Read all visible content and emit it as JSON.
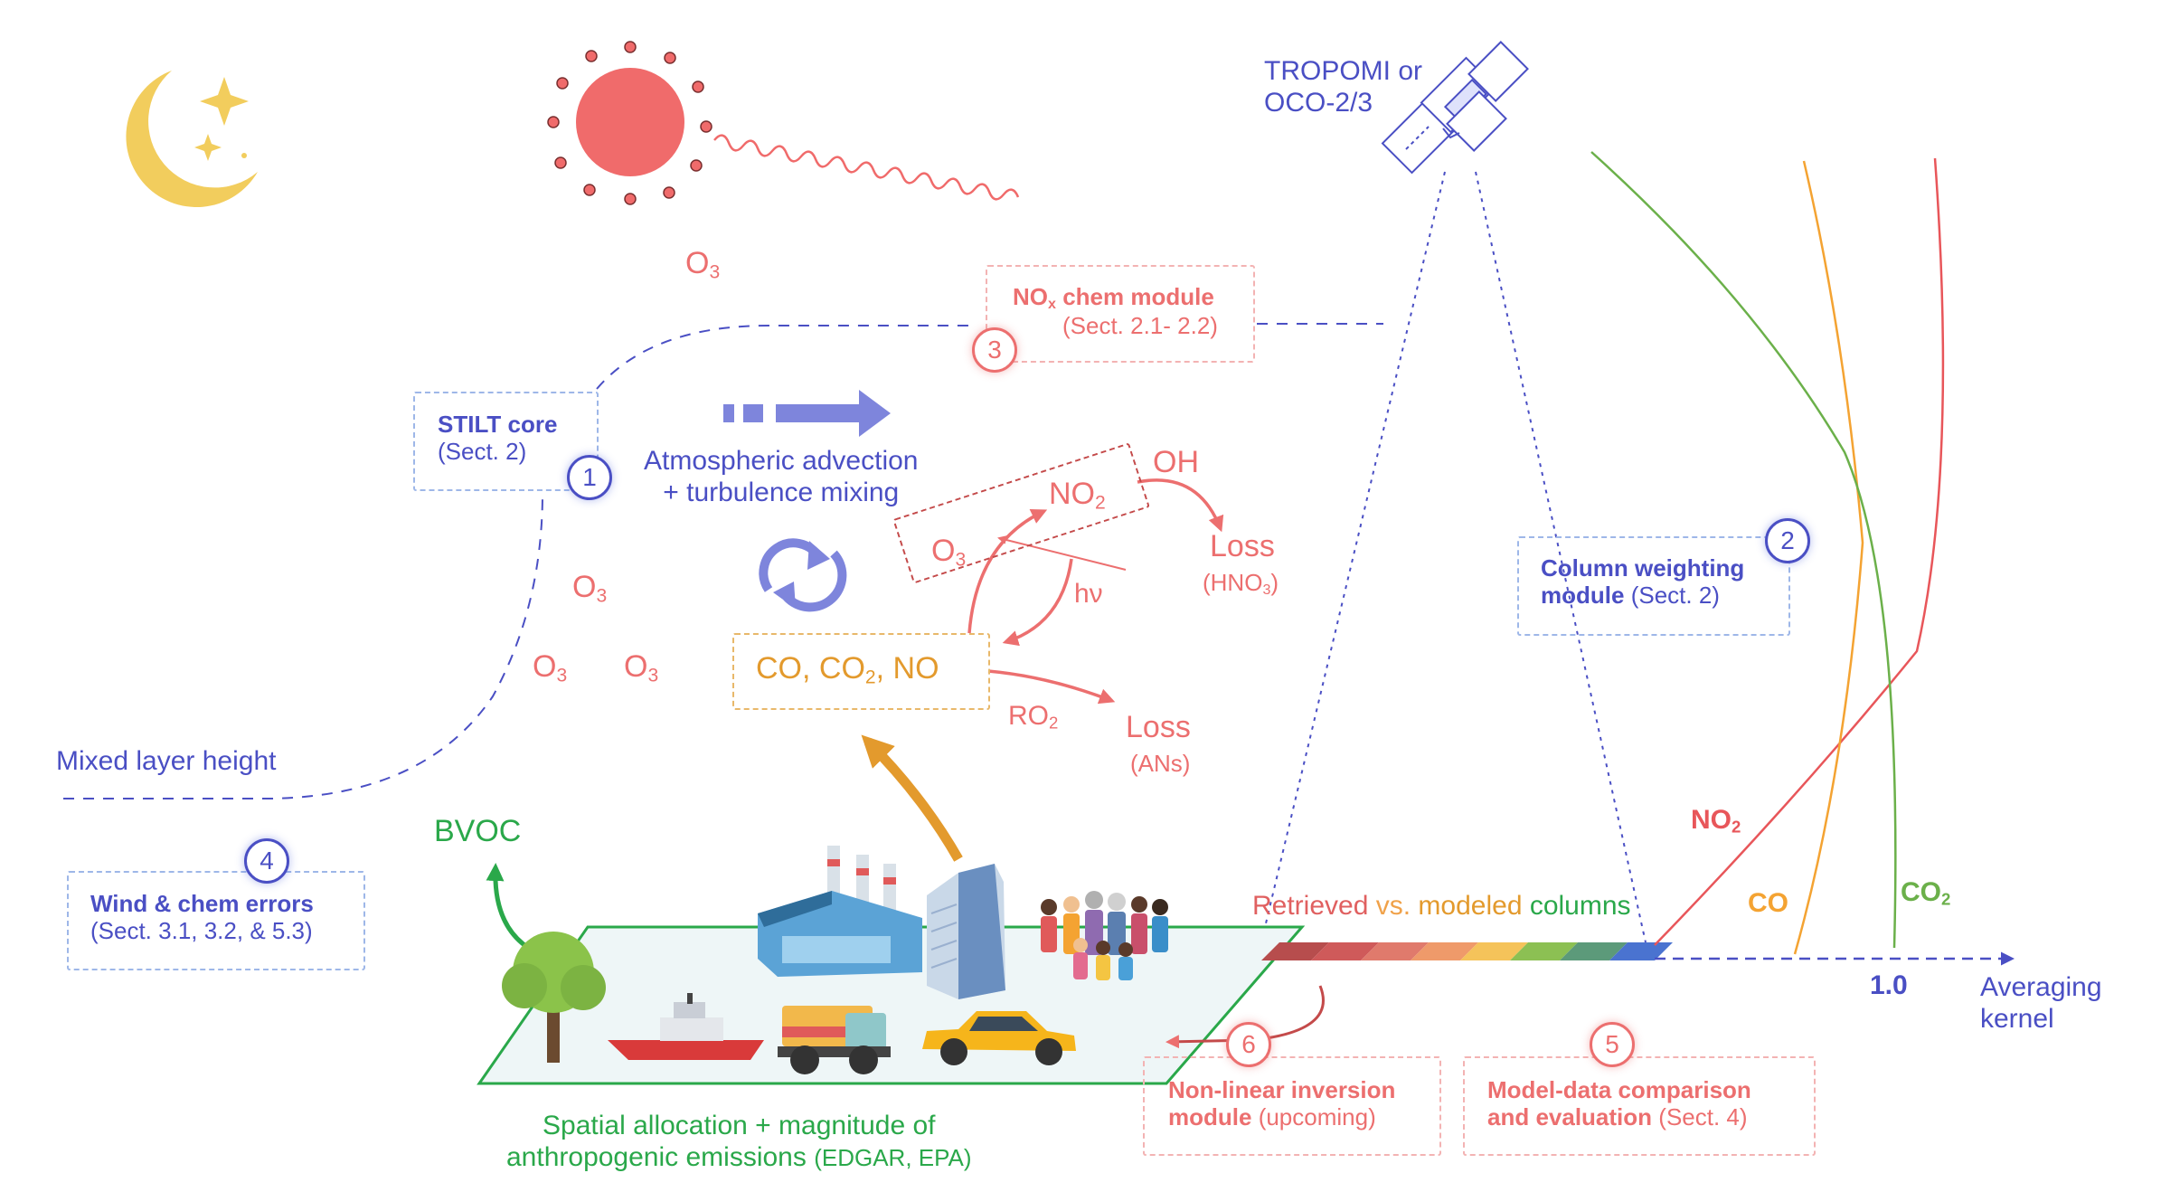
{
  "satellite": {
    "label_line1": "TROPOMI or",
    "label_line2": "OCO-2/3"
  },
  "atmosphere": {
    "mixed_layer_label": "Mixed layer height",
    "advection_line1": "Atmospheric advection",
    "advection_line2": "+ turbulence mixing",
    "ozone_symbol": "O",
    "ozone_sub": "3"
  },
  "modules": {
    "stilt": {
      "number": "1",
      "title": "STILT core",
      "ref": "(Sect. 2)"
    },
    "column": {
      "number": "2",
      "title_line1": "Column weighting",
      "title_line2": "module",
      "ref": "(Sect. 2)"
    },
    "nox": {
      "number": "3",
      "title_prefix": "NO",
      "title_sub": "x",
      "title_suffix": " chem module",
      "ref": "(Sect. 2.1- 2.2)"
    },
    "errors": {
      "number": "4",
      "title": "Wind & chem errors",
      "ref": "(Sect. 3.1, 3.2, & 5.3)"
    },
    "comparison": {
      "number": "5",
      "title_line1": "Model-data comparison",
      "title_line2": "and evaluation",
      "ref": "(Sect. 4)"
    },
    "inversion": {
      "number": "6",
      "title_line1": "Non-linear inversion",
      "title_line2": "module",
      "ref": "(upcoming)"
    }
  },
  "chemistry": {
    "species_box": {
      "co": "CO, CO",
      "co2_sub": "2",
      "no": ", NO"
    },
    "no2": {
      "text": "NO",
      "sub": "2"
    },
    "o3": {
      "text": "O",
      "sub": "3"
    },
    "oh": "OH",
    "hv": "hν",
    "ro2": {
      "text": "RO",
      "sub": "2"
    },
    "loss_hno3": {
      "title": "Loss",
      "detail": "(HNO",
      "detail_sub": "3",
      "detail_end": ")"
    },
    "loss_ans": {
      "title": "Loss",
      "detail": "(ANs)"
    }
  },
  "surface": {
    "bvoc": "BVOC",
    "emissions_line1": "Spatial allocation + magnitude of",
    "emissions_line2_main": "anthropogenic emissions",
    "emissions_line2_src": "(EDGAR, EPA)"
  },
  "columns_legend": {
    "retrieved": "Retrieved",
    "vs": " vs. ",
    "modeled": "modeled",
    "columns": " columns"
  },
  "kernel": {
    "no2": {
      "text": "NO",
      "sub": "2"
    },
    "co": "CO",
    "co2": {
      "text": "CO",
      "sub": "2"
    },
    "tick_value": "1.0",
    "axis_line1": "Averaging",
    "axis_line2": "kernel"
  },
  "colors": {
    "blue_text": "#4a4fc4",
    "red_text": "#ec6f6f",
    "orange": "#e39a2d",
    "green": "#2aa84a",
    "sun": "#f06b6b",
    "moon": "#f2cd5d",
    "arrow_purple": "#7e85dc",
    "kernel_no2": "#e8565a",
    "kernel_co": "#f4a332",
    "kernel_co2": "#6bb04a"
  }
}
